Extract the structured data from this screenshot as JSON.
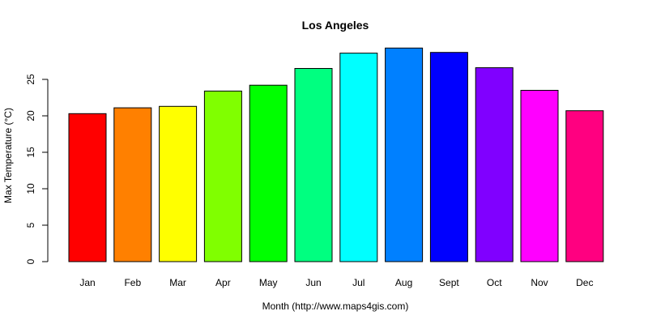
{
  "chart_data": {
    "type": "bar",
    "title": "Los Angeles",
    "xlabel": "Month (http://www.maps4gis.com)",
    "ylabel": "Max Temperature (°C)",
    "categories": [
      "Jan",
      "Feb",
      "Mar",
      "Apr",
      "May",
      "Jun",
      "Jul",
      "Aug",
      "Sept",
      "Oct",
      "Nov",
      "Dec"
    ],
    "values": [
      20.3,
      21.1,
      21.3,
      23.4,
      24.2,
      26.5,
      28.6,
      29.3,
      28.7,
      26.6,
      23.5,
      20.7
    ],
    "colors": [
      "#FF0000",
      "#FF8000",
      "#FFFF00",
      "#80FF00",
      "#00FF00",
      "#00FF80",
      "#00FFFF",
      "#0080FF",
      "#0000FF",
      "#8000FF",
      "#FF00FF",
      "#FF0080"
    ],
    "yticks": [
      0,
      5,
      10,
      15,
      20,
      25
    ],
    "ylim": [
      0,
      30
    ],
    "grid": false,
    "legend": null
  }
}
